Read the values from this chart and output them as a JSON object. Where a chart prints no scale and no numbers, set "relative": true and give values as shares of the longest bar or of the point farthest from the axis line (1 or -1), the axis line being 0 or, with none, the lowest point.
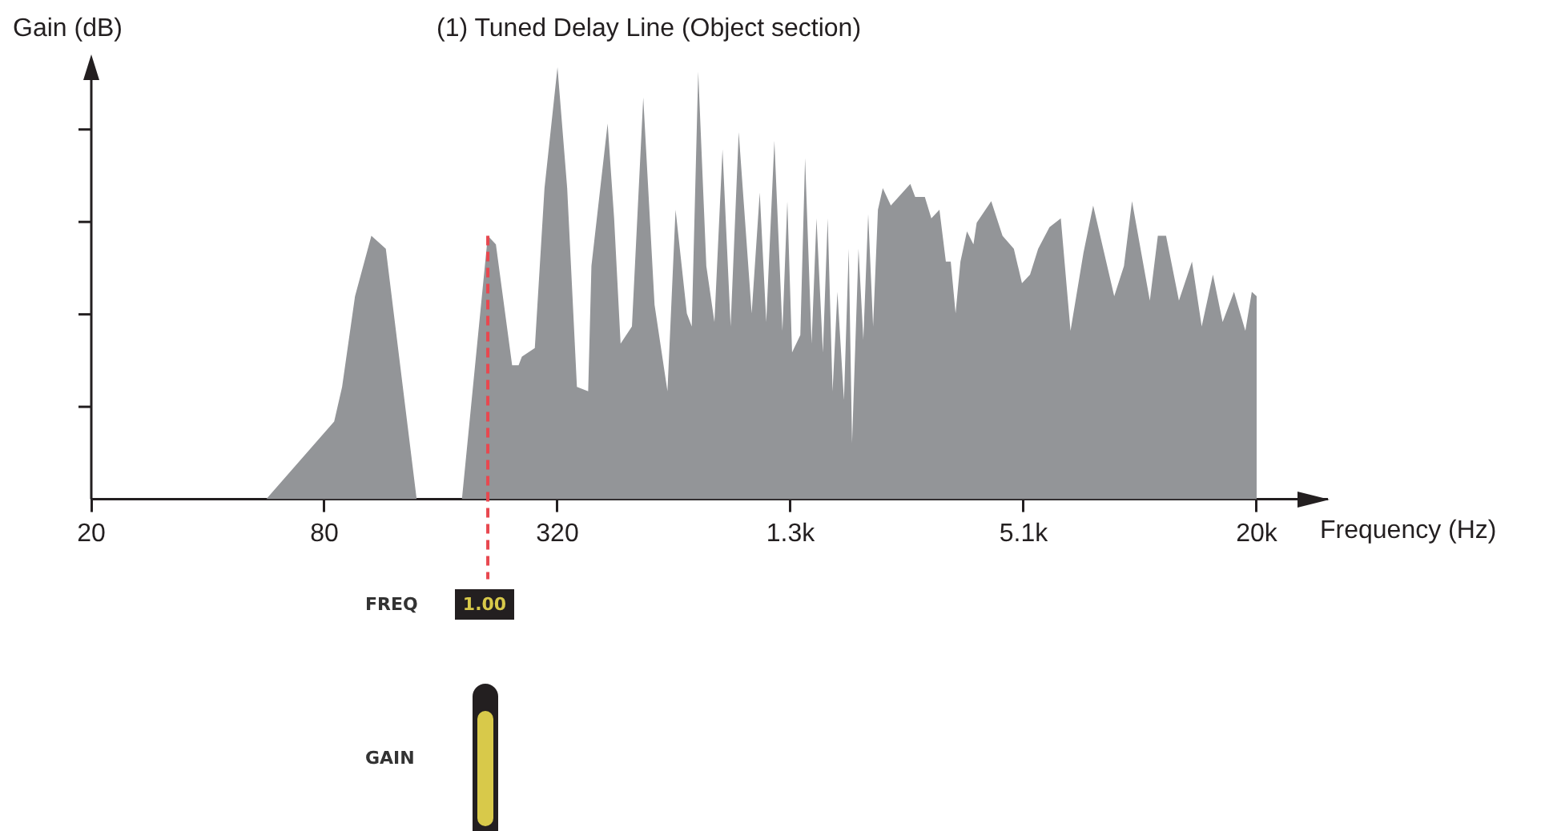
{
  "chart_data": {
    "type": "area",
    "title": "(1) Tuned Delay Line (Object section)",
    "xlabel": "Frequency (Hz)",
    "ylabel": "Gain (dB)",
    "relative": true,
    "log": "x",
    "color": "#939598",
    "xlim": [
      20,
      31000
    ],
    "xticks": [
      20,
      80,
      320,
      {
        "value": 1280,
        "label": "1.3k"
      },
      {
        "value": 5120,
        "label": "5.1k"
      },
      {
        "value": 20480,
        "label": "20k"
      }
    ],
    "x": [
      56.6,
      84.8,
      88.9,
      96.0,
      105.8,
      115.3,
      138.5,
      181.3,
      211.5,
      221.9,
      244.4,
      254.0,
      259.0,
      279.7,
      296.3,
      320.1,
      339.1,
      359.3,
      384.2,
      391.7,
      431.3,
      448.3,
      465.9,
      498.4,
      533.1,
      570.2,
      615.7,
      646.1,
      691.0,
      711.3,
      739.3,
      775.8,
      814.1,
      854.2,
      896.5,
      940.7,
      1016,
      1066,
      1108,
      1163,
      1220,
      1256,
      1292,
      1357,
      1396,
      1451,
      1494,
      1552,
      1597,
      1644,
      1692,
      1759,
      1810,
      1846,
      1918,
      1974,
      2032,
      2092,
      2153,
      2216,
      2325,
      2610,
      2687,
      2846,
      2958,
      3104,
      3225,
      3320,
      3417,
      3517,
      3656,
      3800,
      3874,
      4224,
      4517,
      4832,
      5071,
      5321,
      5584,
      5973,
      6389,
      6769,
      7310,
      7746,
      8779,
      9302,
      9759,
      10850,
      11380,
      11950,
      12900,
      13940,
      14770,
      15790,
      16730,
      17900,
      19150,
      19900,
      20480,
      20480
    ],
    "values": [
      0,
      0.18,
      0.26,
      0.47,
      0.61,
      0.58,
      0,
      0,
      0.61,
      0.59,
      0.31,
      0.31,
      0.33,
      0.35,
      0.72,
      1.0,
      0.72,
      0.26,
      0.25,
      0.54,
      0.87,
      0.65,
      0.36,
      0.4,
      0.93,
      0.45,
      0.25,
      0.67,
      0.43,
      0.4,
      0.99,
      0.54,
      0.41,
      0.81,
      0.4,
      0.85,
      0.43,
      0.71,
      0.41,
      0.83,
      0.39,
      0.69,
      0.34,
      0.38,
      0.79,
      0.36,
      0.65,
      0.34,
      0.65,
      0.25,
      0.48,
      0.23,
      0.58,
      0.13,
      0.58,
      0.37,
      0.66,
      0.4,
      0.67,
      0.72,
      0.68,
      0.73,
      0.7,
      0.7,
      0.65,
      0.67,
      0.55,
      0.55,
      0.43,
      0.55,
      0.62,
      0.59,
      0.64,
      0.69,
      0.61,
      0.58,
      0.5,
      0.52,
      0.58,
      0.63,
      0.65,
      0.39,
      0.57,
      0.68,
      0.47,
      0.54,
      0.69,
      0.46,
      0.61,
      0.61,
      0.46,
      0.55,
      0.4,
      0.52,
      0.41,
      0.48,
      0.39,
      0.48,
      0.47,
      0
    ],
    "ref_lines": [
      {
        "axis": "x",
        "value": 211.5,
        "color": "#e8474f",
        "line_style": "dashed"
      }
    ],
    "annotations": [
      "FREQ",
      "1.00",
      "GAIN"
    ]
  }
}
